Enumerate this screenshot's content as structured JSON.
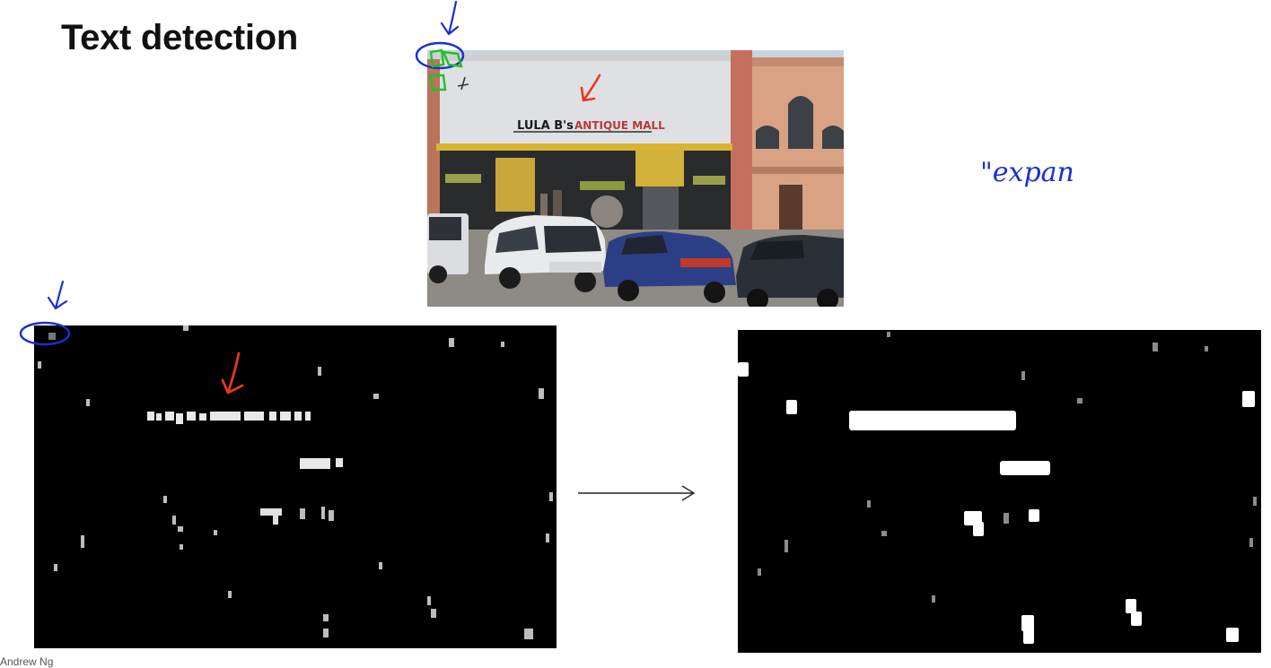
{
  "slide": {
    "title": "Text detection"
  },
  "photo": {
    "sign_brand": "LULA B's",
    "sign_rest": "ANTIQUE MALL"
  },
  "annotations": {
    "handwritten_note": "\"expan"
  },
  "footer": {
    "fragment": "Andrew Ng"
  },
  "colors": {
    "slide_background": "#ffffff",
    "panel_background": "#000000",
    "blue_ink": "#1a2fd0",
    "red_ink": "#e53a1c",
    "green_marker": "#20c02a"
  }
}
